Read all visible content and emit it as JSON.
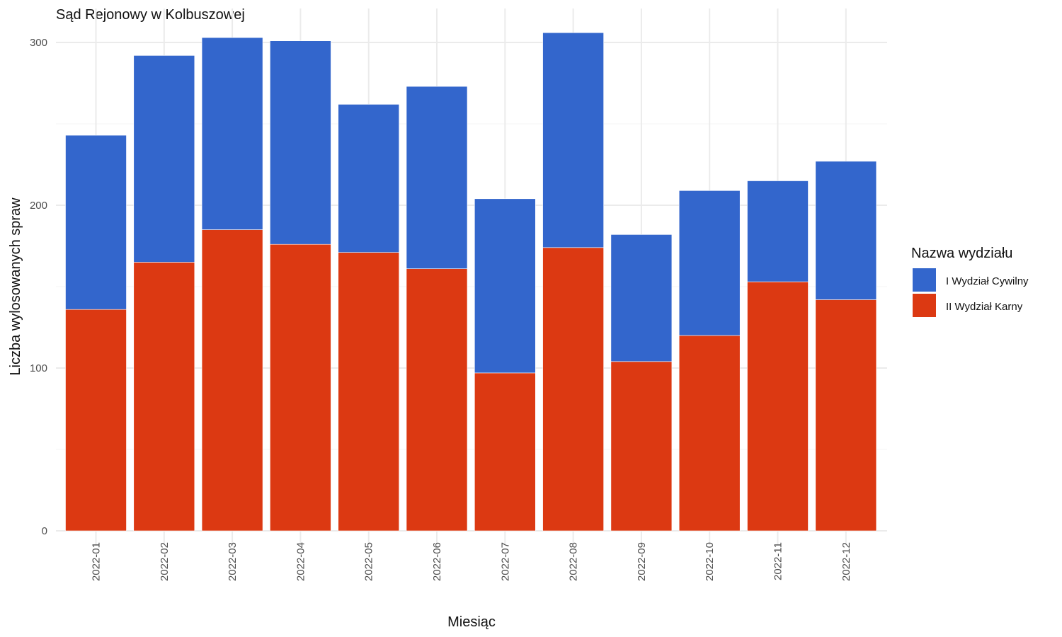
{
  "chart_data": {
    "type": "bar",
    "stacked": true,
    "title": "Sąd Rejonowy w Kolbuszowej",
    "xlabel": "Miesiąc",
    "ylabel": "Liczba wylosowanych spraw",
    "categories": [
      "2022-01",
      "2022-02",
      "2022-03",
      "2022-04",
      "2022-05",
      "2022-06",
      "2022-07",
      "2022-08",
      "2022-09",
      "2022-10",
      "2022-11",
      "2022-12"
    ],
    "series": [
      {
        "name": "I Wydział Cywilny",
        "color": "#3366cc",
        "values": [
          107,
          127,
          118,
          125,
          91,
          112,
          107,
          132,
          78,
          89,
          62,
          85
        ]
      },
      {
        "name": "II Wydział Karny",
        "color": "#dc3912",
        "values": [
          136,
          165,
          185,
          176,
          171,
          161,
          97,
          174,
          104,
          120,
          153,
          142
        ]
      }
    ],
    "stack_order": [
      "II Wydział Karny",
      "I Wydział Cywilny"
    ],
    "ylim": [
      0,
      310
    ],
    "yticks": [
      0,
      100,
      200,
      300
    ],
    "grid": true,
    "legend": {
      "title": "Nazwa wydziału",
      "position": "right"
    }
  }
}
